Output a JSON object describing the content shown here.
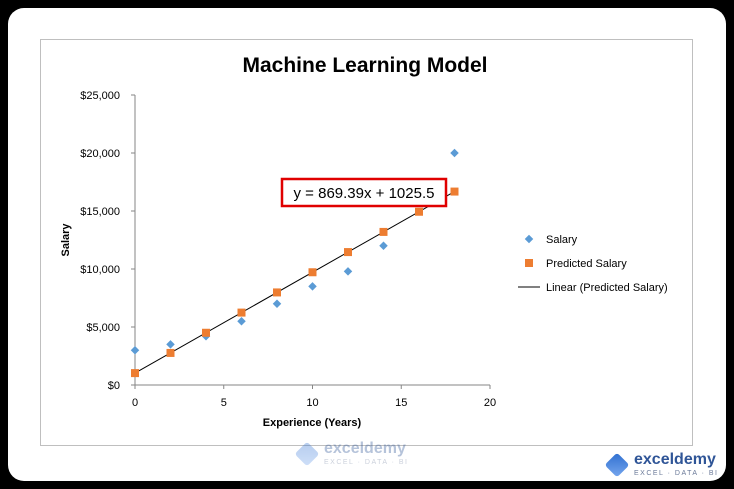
{
  "chart_data": {
    "type": "scatter",
    "title": "Machine Learning Model",
    "xlabel": "Experience (Years)",
    "ylabel": "Salary",
    "xlim": [
      0,
      20
    ],
    "ylim": [
      0,
      25000
    ],
    "x_ticks": [
      "0",
      "5",
      "10",
      "15",
      "20"
    ],
    "y_ticks": [
      "$0",
      "$5,000",
      "$10,000",
      "$15,000",
      "$20,000",
      "$25,000"
    ],
    "grid": false,
    "legend": "right",
    "series": [
      {
        "name": "Salary",
        "marker": "diamond",
        "color": "#5b9bd5",
        "x": [
          0,
          2,
          4,
          6,
          8,
          10,
          12,
          14,
          18
        ],
        "y": [
          3000,
          3500,
          4200,
          5500,
          7000,
          8500,
          9800,
          12000,
          20000
        ]
      },
      {
        "name": "Predicted Salary",
        "marker": "square",
        "color": "#ed7d31",
        "x": [
          0,
          2,
          4,
          6,
          8,
          10,
          12,
          14,
          16,
          18
        ],
        "y": [
          1025.5,
          2764.3,
          4503.1,
          6241.8,
          7980.6,
          9719.4,
          11458.2,
          13196.9,
          14935.7,
          16674.5
        ]
      }
    ],
    "trendline": {
      "name": "Linear (Predicted Salary)",
      "color": "#000000",
      "slope": 869.39,
      "intercept": 1025.5,
      "x_range": [
        0,
        18
      ]
    },
    "annotation": {
      "text": "y = 869.39x + 1025.5",
      "border_color": "#e00000"
    }
  },
  "watermark": {
    "name": "exceldemy",
    "tagline": "EXCEL · DATA · BI"
  },
  "branding": {
    "name": "exceldemy",
    "tagline": "EXCEL · DATA · BI"
  }
}
